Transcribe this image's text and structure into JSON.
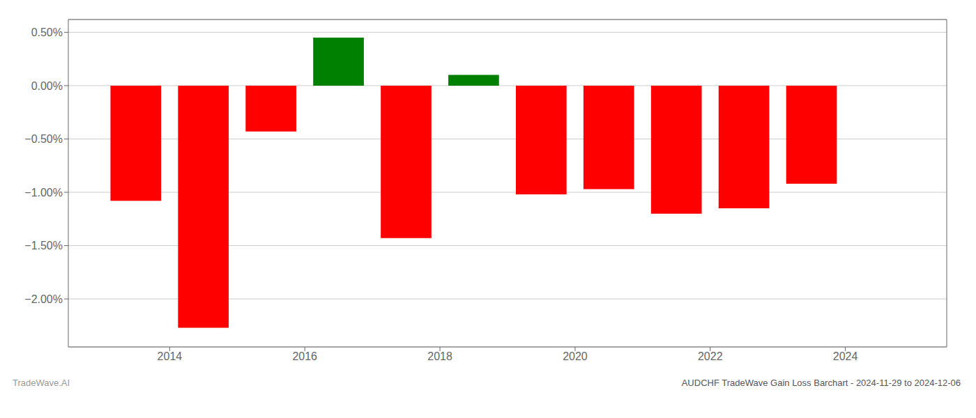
{
  "chart_data": {
    "type": "bar",
    "x": [
      2013.5,
      2014.5,
      2015.5,
      2016.5,
      2017.5,
      2018.5,
      2019.5,
      2020.5,
      2021.5,
      2022.5,
      2023.5
    ],
    "values": [
      -1.08,
      -2.27,
      -0.43,
      0.45,
      -1.43,
      0.1,
      -1.02,
      -0.97,
      -1.2,
      -1.15,
      -0.92
    ],
    "colors": [
      "#ff0000",
      "#ff0000",
      "#ff0000",
      "#008000",
      "#ff0000",
      "#008000",
      "#ff0000",
      "#ff0000",
      "#ff0000",
      "#ff0000",
      "#ff0000"
    ],
    "xlim": [
      2012.5,
      2025.5
    ],
    "xticks": [
      2014,
      2016,
      2018,
      2020,
      2022,
      2024
    ],
    "ylim": [
      -2.45,
      0.62
    ],
    "yticks": [
      {
        "value": -2.0,
        "label": "−2.00%"
      },
      {
        "value": -1.5,
        "label": "−1.50%"
      },
      {
        "value": -1.0,
        "label": "−1.00%"
      },
      {
        "value": -0.5,
        "label": "−0.50%"
      },
      {
        "value": 0.0,
        "label": "0.00%"
      },
      {
        "value": 0.5,
        "label": "0.50%"
      }
    ],
    "grid": true,
    "annotations": [
      "TradeWave.AI",
      "AUDCHF TradeWave Gain Loss Barchart - 2024-11-29 to 2024-12-06"
    ]
  }
}
